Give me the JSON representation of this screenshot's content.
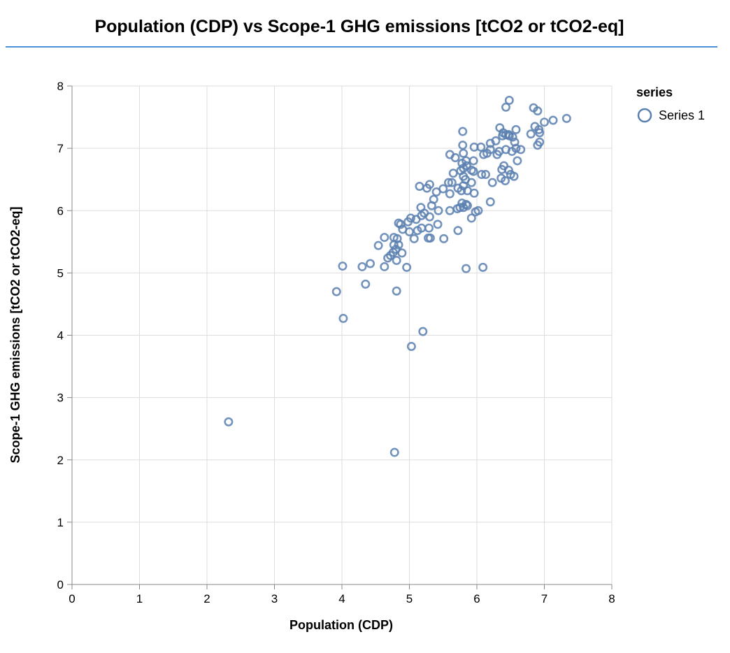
{
  "chart_data": {
    "type": "scatter",
    "title": "Population (CDP) vs Scope-1 GHG emissions [tCO2 or tCO2-eq]",
    "xlabel": "Population (CDP)",
    "ylabel": "Scope-1 GHG emissions [tCO2 or tCO2-eq]",
    "xlim": [
      0,
      8
    ],
    "ylim": [
      0,
      8
    ],
    "x_ticks": [
      "0",
      "1",
      "2",
      "3",
      "4",
      "5",
      "6",
      "7",
      "8"
    ],
    "y_ticks": [
      "0",
      "1",
      "2",
      "3",
      "4",
      "5",
      "6",
      "7",
      "8"
    ],
    "grid": true,
    "legend": {
      "title": "series",
      "position": "top-right"
    },
    "marker_color": "#5b80b0",
    "series": [
      {
        "name": "Series 1",
        "points": [
          [
            2.32,
            2.61
          ],
          [
            4.78,
            2.12
          ],
          [
            5.03,
            3.82
          ],
          [
            5.2,
            4.06
          ],
          [
            4.02,
            4.27
          ],
          [
            3.92,
            4.7
          ],
          [
            4.81,
            4.71
          ],
          [
            4.35,
            4.82
          ],
          [
            4.01,
            5.11
          ],
          [
            4.3,
            5.1
          ],
          [
            4.42,
            5.15
          ],
          [
            4.63,
            5.1
          ],
          [
            4.96,
            5.09
          ],
          [
            5.84,
            5.07
          ],
          [
            6.09,
            5.09
          ],
          [
            4.81,
            5.2
          ],
          [
            4.68,
            5.24
          ],
          [
            4.72,
            5.28
          ],
          [
            4.76,
            5.33
          ],
          [
            4.89,
            5.32
          ],
          [
            4.8,
            5.38
          ],
          [
            4.77,
            5.45
          ],
          [
            4.84,
            5.45
          ],
          [
            4.54,
            5.44
          ],
          [
            4.63,
            5.57
          ],
          [
            4.77,
            5.57
          ],
          [
            4.82,
            5.55
          ],
          [
            5.07,
            5.55
          ],
          [
            5.28,
            5.56
          ],
          [
            5.31,
            5.56
          ],
          [
            5.51,
            5.55
          ],
          [
            5.72,
            5.68
          ],
          [
            4.84,
            5.8
          ],
          [
            4.87,
            5.78
          ],
          [
            4.9,
            5.7
          ],
          [
            5.0,
            5.66
          ],
          [
            5.12,
            5.68
          ],
          [
            5.18,
            5.72
          ],
          [
            5.29,
            5.72
          ],
          [
            5.42,
            5.78
          ],
          [
            4.98,
            5.82
          ],
          [
            5.02,
            5.88
          ],
          [
            5.1,
            5.86
          ],
          [
            5.18,
            5.92
          ],
          [
            5.3,
            5.9
          ],
          [
            5.22,
            5.96
          ],
          [
            5.17,
            6.05
          ],
          [
            5.33,
            6.08
          ],
          [
            5.36,
            6.18
          ],
          [
            5.43,
            6.0
          ],
          [
            5.6,
            6.0
          ],
          [
            5.71,
            6.03
          ],
          [
            5.75,
            6.05
          ],
          [
            5.8,
            6.05
          ],
          [
            5.86,
            6.08
          ],
          [
            5.78,
            6.12
          ],
          [
            5.84,
            6.1
          ],
          [
            5.98,
            5.98
          ],
          [
            5.92,
            5.88
          ],
          [
            6.2,
            6.14
          ],
          [
            5.15,
            6.39
          ],
          [
            5.26,
            6.36
          ],
          [
            5.3,
            6.42
          ],
          [
            5.4,
            6.3
          ],
          [
            5.5,
            6.35
          ],
          [
            5.58,
            6.45
          ],
          [
            5.63,
            6.45
          ],
          [
            5.6,
            6.27
          ],
          [
            5.72,
            6.36
          ],
          [
            5.77,
            6.32
          ],
          [
            5.8,
            6.4
          ],
          [
            5.86,
            6.32
          ],
          [
            5.92,
            6.45
          ],
          [
            5.96,
            6.28
          ],
          [
            5.8,
            6.55
          ],
          [
            5.65,
            6.6
          ],
          [
            5.76,
            6.64
          ],
          [
            5.8,
            6.68
          ],
          [
            5.85,
            6.72
          ],
          [
            5.78,
            6.76
          ],
          [
            5.84,
            6.8
          ],
          [
            5.92,
            6.65
          ],
          [
            5.95,
            6.8
          ],
          [
            6.07,
            6.58
          ],
          [
            6.13,
            6.58
          ],
          [
            6.23,
            6.45
          ],
          [
            6.36,
            6.52
          ],
          [
            6.42,
            6.48
          ],
          [
            6.5,
            6.58
          ],
          [
            6.55,
            6.55
          ],
          [
            6.37,
            6.66
          ],
          [
            6.4,
            6.72
          ],
          [
            6.47,
            6.65
          ],
          [
            6.6,
            6.8
          ],
          [
            5.6,
            6.9
          ],
          [
            5.68,
            6.85
          ],
          [
            5.8,
            6.92
          ],
          [
            6.1,
            6.9
          ],
          [
            6.15,
            6.92
          ],
          [
            6.2,
            6.98
          ],
          [
            6.3,
            6.9
          ],
          [
            6.33,
            6.95
          ],
          [
            6.43,
            6.98
          ],
          [
            6.52,
            6.95
          ],
          [
            6.58,
            7.0
          ],
          [
            6.65,
            6.98
          ],
          [
            5.79,
            7.05
          ],
          [
            5.96,
            7.02
          ],
          [
            6.06,
            7.02
          ],
          [
            6.2,
            7.08
          ],
          [
            6.28,
            7.12
          ],
          [
            6.38,
            7.2
          ],
          [
            6.43,
            7.22
          ],
          [
            6.48,
            7.2
          ],
          [
            6.53,
            7.18
          ],
          [
            6.56,
            7.1
          ],
          [
            6.58,
            7.3
          ],
          [
            5.79,
            7.27
          ],
          [
            6.34,
            7.33
          ],
          [
            6.39,
            7.25
          ],
          [
            6.47,
            7.22
          ],
          [
            6.8,
            7.23
          ],
          [
            6.86,
            7.35
          ],
          [
            6.92,
            7.3
          ],
          [
            6.93,
            7.25
          ],
          [
            6.9,
            7.05
          ],
          [
            6.93,
            7.1
          ],
          [
            7.0,
            7.42
          ],
          [
            7.13,
            7.45
          ],
          [
            7.33,
            7.48
          ],
          [
            6.84,
            7.65
          ],
          [
            6.9,
            7.6
          ],
          [
            6.43,
            7.66
          ],
          [
            6.48,
            7.77
          ],
          [
            5.95,
            6.63
          ],
          [
            6.02,
            6.0
          ],
          [
            5.83,
            6.5
          ]
        ]
      }
    ]
  }
}
